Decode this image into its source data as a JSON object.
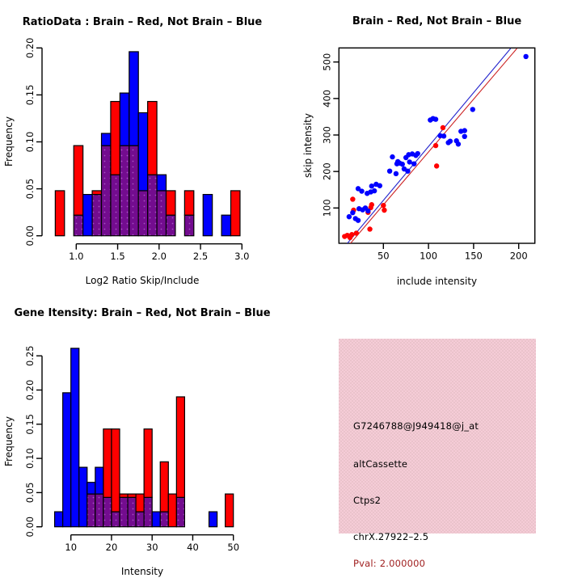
{
  "window": {
    "background": "#ffffff",
    "description": "R graphics device, 2x2 plot layout"
  },
  "colors": {
    "red": "#ff0000",
    "blue": "#0000ff",
    "overlap_purple": "#730c8f",
    "overlap_dot": "#a64fc2",
    "line_red": "#cc2222",
    "line_blue": "#2222cc",
    "axis": "#000000",
    "info_bg": "#f2c9d2",
    "pval_text": "#a02020"
  },
  "chart_data": [
    {
      "id": "ratio-histogram",
      "type": "bar",
      "subtype": "overlaid-histogram",
      "title": "RatioData : Brain – Red, Not Brain – Blue",
      "xlabel": "Log2 Ratio Skip/Include",
      "ylabel": "Frequency",
      "xticks": [
        "1.0",
        "1.5",
        "2.0",
        "2.5",
        "3.0"
      ],
      "yticks": [
        "0.00",
        "0.05",
        "0.10",
        "0.15",
        "0.20"
      ],
      "xlim": [
        0.72,
        3.0
      ],
      "ylim": [
        0,
        0.2
      ],
      "bin_start": 0.747,
      "bin_width": 0.1115,
      "series": [
        {
          "name": "Brain",
          "color_key": "red",
          "values": [
            0.048,
            0,
            0.096,
            0,
            0.048,
            0.096,
            0.143,
            0.096,
            0.096,
            0.048,
            0.143,
            0.048,
            0.048,
            0,
            0.048,
            0,
            0,
            0,
            0,
            0.048
          ]
        },
        {
          "name": "Not Brain",
          "color_key": "blue",
          "values": [
            0,
            0,
            0.022,
            0.044,
            0.044,
            0.109,
            0.065,
            0.152,
            0.196,
            0.131,
            0.065,
            0.065,
            0.022,
            0,
            0.022,
            0,
            0.044,
            0,
            0.022,
            0
          ]
        }
      ],
      "overlap_rendering": "purple where red and blue histograms overlap"
    },
    {
      "id": "intensity-scatter",
      "type": "scatter",
      "title": "Brain – Red, Not Brain – Blue",
      "xlabel": "include intensity",
      "ylabel": "skip intensity",
      "xticks": [
        "50",
        "100",
        "150",
        "200"
      ],
      "yticks": [
        "100",
        "200",
        "300",
        "400",
        "500"
      ],
      "xlim": [
        3,
        218
      ],
      "ylim": [
        0,
        540
      ],
      "series": [
        {
          "name": "Brain",
          "color_key": "red",
          "points": [
            [
              116,
              320
            ],
            [
              108,
              271
            ],
            [
              109,
              215
            ],
            [
              16,
              124
            ],
            [
              37,
              109
            ],
            [
              50,
              107
            ],
            [
              51,
              94
            ],
            [
              36,
              101
            ],
            [
              17,
              94
            ],
            [
              33,
              88
            ],
            [
              35,
              42
            ],
            [
              20,
              31
            ],
            [
              15,
              27
            ],
            [
              13,
              19
            ],
            [
              10,
              25
            ],
            [
              7,
              22
            ]
          ]
        },
        {
          "name": "Not Brain",
          "color_key": "blue",
          "points": [
            [
              208,
              515
            ],
            [
              149,
              370
            ],
            [
              140,
              312
            ],
            [
              136,
              310
            ],
            [
              140,
              296
            ],
            [
              133,
              275
            ],
            [
              131,
              284
            ],
            [
              124,
              283
            ],
            [
              122,
              279
            ],
            [
              117,
              297
            ],
            [
              113,
              298
            ],
            [
              102,
              341
            ],
            [
              105,
              345
            ],
            [
              108,
              343
            ],
            [
              88,
              249
            ],
            [
              86,
              244
            ],
            [
              82,
              248
            ],
            [
              78,
              246
            ],
            [
              75,
              238
            ],
            [
              71,
              220
            ],
            [
              66,
              227
            ],
            [
              60,
              240
            ],
            [
              79,
              226
            ],
            [
              84,
              221
            ],
            [
              73,
              207
            ],
            [
              77,
              201
            ],
            [
              65,
              221
            ],
            [
              68,
              223
            ],
            [
              57,
              201
            ],
            [
              64,
              194
            ],
            [
              42,
              165
            ],
            [
              46,
              161
            ],
            [
              37,
              160
            ],
            [
              32,
              140
            ],
            [
              36,
              144
            ],
            [
              40,
              147
            ],
            [
              22,
              153
            ],
            [
              26,
              146
            ],
            [
              12,
              76
            ],
            [
              19,
              71
            ],
            [
              16,
              87
            ],
            [
              22,
              66
            ],
            [
              23,
              98
            ],
            [
              27,
              95
            ],
            [
              30,
              100
            ],
            [
              33,
              92
            ]
          ]
        }
      ],
      "fit_lines": [
        {
          "name": "blue-fit",
          "color_key": "line_blue",
          "from": [
            9,
            0
          ],
          "to": [
            191,
            537
          ]
        },
        {
          "name": "red-fit",
          "color_key": "line_red",
          "from": [
            9,
            -10
          ],
          "to": [
            198,
            537
          ]
        }
      ]
    },
    {
      "id": "gene-intensity-histogram",
      "type": "bar",
      "subtype": "overlaid-histogram",
      "title": "Gene Itensity: Brain – Red, Not Brain – Blue",
      "xlabel": "Intensity",
      "ylabel": "Frequency",
      "xticks": [
        "10",
        "20",
        "30",
        "40",
        "50"
      ],
      "yticks": [
        "0.00",
        "0.05",
        "0.10",
        "0.15",
        "0.20",
        "0.25"
      ],
      "xlim": [
        6,
        52
      ],
      "ylim": [
        0,
        0.26
      ],
      "bin_start": 6,
      "bin_width": 2,
      "series": [
        {
          "name": "Brain",
          "color_key": "red",
          "values": [
            0,
            0,
            0,
            0,
            0.048,
            0.048,
            0.143,
            0.143,
            0.048,
            0.048,
            0.048,
            0.143,
            0,
            0.095,
            0.048,
            0.19,
            0,
            0,
            0,
            0,
            0,
            0.048
          ]
        },
        {
          "name": "Not Brain",
          "color_key": "blue",
          "values": [
            0.022,
            0.196,
            0.261,
            0.087,
            0.065,
            0.087,
            0.043,
            0.022,
            0.043,
            0.043,
            0.022,
            0.043,
            0.022,
            0.022,
            0,
            0.043,
            0,
            0,
            0,
            0.022,
            0,
            0
          ]
        }
      ],
      "overlap_rendering": "purple where red and blue histograms overlap"
    }
  ],
  "info_panel": {
    "lines": [
      {
        "id": "probe-id",
        "text": "G7246788@J949418@j_at",
        "color": "#000000"
      },
      {
        "id": "event-type",
        "text": "altCassette",
        "color": "#000000"
      },
      {
        "id": "gene-symbol",
        "text": "Ctps2",
        "color": "#000000"
      },
      {
        "id": "locus",
        "text": "chrX.27922–2.5",
        "color": "#000000"
      },
      {
        "id": "pval",
        "text": "Pval: 2.000000",
        "color": "#a02020"
      }
    ]
  }
}
